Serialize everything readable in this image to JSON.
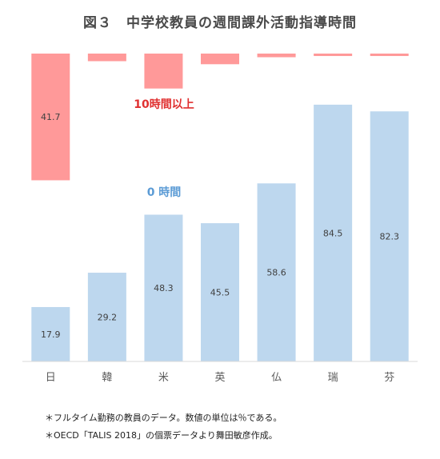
{
  "title": "図３　中学校教員の週間課外活動指導時間",
  "chart_data": {
    "type": "bar",
    "categories": [
      "日",
      "韓",
      "米",
      "英",
      "仏",
      "瑞",
      "芬"
    ],
    "series": [
      {
        "name": "0 時間",
        "values": [
          17.9,
          29.2,
          48.3,
          45.5,
          58.6,
          84.5,
          82.3
        ],
        "color": "#bdd7ee",
        "direction": "up"
      },
      {
        "name": "10時間以上",
        "values": [
          41.7,
          2.5,
          11.5,
          3.5,
          1.2,
          0.8,
          0.8
        ],
        "color": "#ff9999",
        "direction": "down"
      }
    ],
    "data_labels": {
      "0 時間": [
        "17.9",
        "29.2",
        "48.3",
        "45.5",
        "58.6",
        "84.5",
        "82.3"
      ],
      "10時間以上": [
        "41.7",
        "",
        "",
        "",
        "",
        "",
        ""
      ]
    },
    "series_label_colors": {
      "0 時間": "#5b9bd5",
      "10時間以上": "#e03030"
    },
    "ylim": [
      0,
      100
    ],
    "grid": false
  },
  "notes": [
    "＊フルタイム勤務の教員のデータ。数値の単位は％である。",
    "＊OECD「TALIS 2018」の個票データより舞田敏彦作成。"
  ]
}
